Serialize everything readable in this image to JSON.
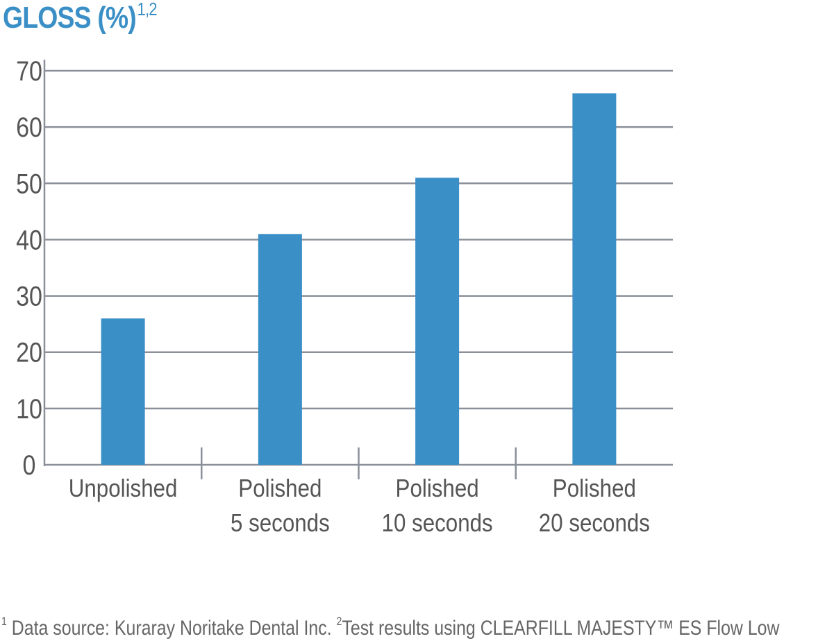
{
  "chart_data": {
    "type": "bar",
    "title": "GLOSS (%)",
    "title_superscript": "1,2",
    "categories": [
      [
        "Unpolished"
      ],
      [
        "Polished",
        "5 seconds"
      ],
      [
        "Polished",
        "10 seconds"
      ],
      [
        "Polished",
        "20 seconds"
      ]
    ],
    "values": [
      26,
      41,
      51,
      66
    ],
    "xlabel": "",
    "ylabel": "",
    "ylim": [
      0,
      70
    ],
    "yticks": [
      0,
      10,
      20,
      30,
      40,
      50,
      60,
      70
    ],
    "grid": true,
    "legend": "none",
    "colors": {
      "bar": "#3a8fc6",
      "title": "#3a8fc6",
      "grid": "#8a8f99",
      "text": "#555555"
    }
  },
  "footnote": {
    "note1_marker": "1",
    "note1_text": " Data source: Kuraray Noritake Dental Inc.  ",
    "note2_marker": "2",
    "note2_text": "Test results using CLEARFILL MAJESTY™ ES Flow  Low"
  }
}
